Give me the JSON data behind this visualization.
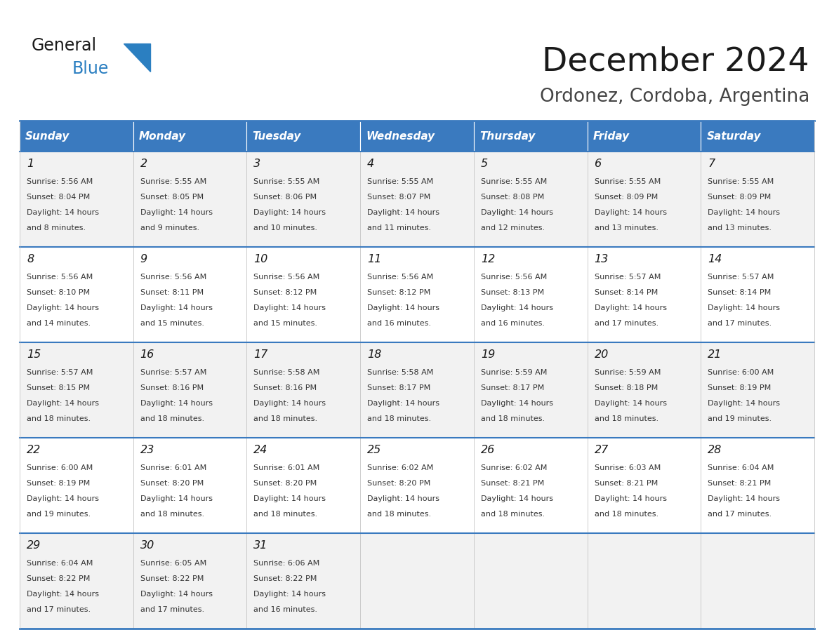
{
  "title": "December 2024",
  "subtitle": "Ordonez, Cordoba, Argentina",
  "header_bg_color": "#3a7abf",
  "header_text_color": "#ffffff",
  "row_bg_colors": [
    "#f2f2f2",
    "#ffffff"
  ],
  "text_color": "#333333",
  "divider_color": "#3a7abf",
  "days_of_week": [
    "Sunday",
    "Monday",
    "Tuesday",
    "Wednesday",
    "Thursday",
    "Friday",
    "Saturday"
  ],
  "weeks": [
    [
      {
        "day": 1,
        "sunrise": "5:56 AM",
        "sunset": "8:04 PM",
        "daylight_line1": "Daylight: 14 hours",
        "daylight_line2": "and 8 minutes."
      },
      {
        "day": 2,
        "sunrise": "5:55 AM",
        "sunset": "8:05 PM",
        "daylight_line1": "Daylight: 14 hours",
        "daylight_line2": "and 9 minutes."
      },
      {
        "day": 3,
        "sunrise": "5:55 AM",
        "sunset": "8:06 PM",
        "daylight_line1": "Daylight: 14 hours",
        "daylight_line2": "and 10 minutes."
      },
      {
        "day": 4,
        "sunrise": "5:55 AM",
        "sunset": "8:07 PM",
        "daylight_line1": "Daylight: 14 hours",
        "daylight_line2": "and 11 minutes."
      },
      {
        "day": 5,
        "sunrise": "5:55 AM",
        "sunset": "8:08 PM",
        "daylight_line1": "Daylight: 14 hours",
        "daylight_line2": "and 12 minutes."
      },
      {
        "day": 6,
        "sunrise": "5:55 AM",
        "sunset": "8:09 PM",
        "daylight_line1": "Daylight: 14 hours",
        "daylight_line2": "and 13 minutes."
      },
      {
        "day": 7,
        "sunrise": "5:55 AM",
        "sunset": "8:09 PM",
        "daylight_line1": "Daylight: 14 hours",
        "daylight_line2": "and 13 minutes."
      }
    ],
    [
      {
        "day": 8,
        "sunrise": "5:56 AM",
        "sunset": "8:10 PM",
        "daylight_line1": "Daylight: 14 hours",
        "daylight_line2": "and 14 minutes."
      },
      {
        "day": 9,
        "sunrise": "5:56 AM",
        "sunset": "8:11 PM",
        "daylight_line1": "Daylight: 14 hours",
        "daylight_line2": "and 15 minutes."
      },
      {
        "day": 10,
        "sunrise": "5:56 AM",
        "sunset": "8:12 PM",
        "daylight_line1": "Daylight: 14 hours",
        "daylight_line2": "and 15 minutes."
      },
      {
        "day": 11,
        "sunrise": "5:56 AM",
        "sunset": "8:12 PM",
        "daylight_line1": "Daylight: 14 hours",
        "daylight_line2": "and 16 minutes."
      },
      {
        "day": 12,
        "sunrise": "5:56 AM",
        "sunset": "8:13 PM",
        "daylight_line1": "Daylight: 14 hours",
        "daylight_line2": "and 16 minutes."
      },
      {
        "day": 13,
        "sunrise": "5:57 AM",
        "sunset": "8:14 PM",
        "daylight_line1": "Daylight: 14 hours",
        "daylight_line2": "and 17 minutes."
      },
      {
        "day": 14,
        "sunrise": "5:57 AM",
        "sunset": "8:14 PM",
        "daylight_line1": "Daylight: 14 hours",
        "daylight_line2": "and 17 minutes."
      }
    ],
    [
      {
        "day": 15,
        "sunrise": "5:57 AM",
        "sunset": "8:15 PM",
        "daylight_line1": "Daylight: 14 hours",
        "daylight_line2": "and 18 minutes."
      },
      {
        "day": 16,
        "sunrise": "5:57 AM",
        "sunset": "8:16 PM",
        "daylight_line1": "Daylight: 14 hours",
        "daylight_line2": "and 18 minutes."
      },
      {
        "day": 17,
        "sunrise": "5:58 AM",
        "sunset": "8:16 PM",
        "daylight_line1": "Daylight: 14 hours",
        "daylight_line2": "and 18 minutes."
      },
      {
        "day": 18,
        "sunrise": "5:58 AM",
        "sunset": "8:17 PM",
        "daylight_line1": "Daylight: 14 hours",
        "daylight_line2": "and 18 minutes."
      },
      {
        "day": 19,
        "sunrise": "5:59 AM",
        "sunset": "8:17 PM",
        "daylight_line1": "Daylight: 14 hours",
        "daylight_line2": "and 18 minutes."
      },
      {
        "day": 20,
        "sunrise": "5:59 AM",
        "sunset": "8:18 PM",
        "daylight_line1": "Daylight: 14 hours",
        "daylight_line2": "and 18 minutes."
      },
      {
        "day": 21,
        "sunrise": "6:00 AM",
        "sunset": "8:19 PM",
        "daylight_line1": "Daylight: 14 hours",
        "daylight_line2": "and 19 minutes."
      }
    ],
    [
      {
        "day": 22,
        "sunrise": "6:00 AM",
        "sunset": "8:19 PM",
        "daylight_line1": "Daylight: 14 hours",
        "daylight_line2": "and 19 minutes."
      },
      {
        "day": 23,
        "sunrise": "6:01 AM",
        "sunset": "8:20 PM",
        "daylight_line1": "Daylight: 14 hours",
        "daylight_line2": "and 18 minutes."
      },
      {
        "day": 24,
        "sunrise": "6:01 AM",
        "sunset": "8:20 PM",
        "daylight_line1": "Daylight: 14 hours",
        "daylight_line2": "and 18 minutes."
      },
      {
        "day": 25,
        "sunrise": "6:02 AM",
        "sunset": "8:20 PM",
        "daylight_line1": "Daylight: 14 hours",
        "daylight_line2": "and 18 minutes."
      },
      {
        "day": 26,
        "sunrise": "6:02 AM",
        "sunset": "8:21 PM",
        "daylight_line1": "Daylight: 14 hours",
        "daylight_line2": "and 18 minutes."
      },
      {
        "day": 27,
        "sunrise": "6:03 AM",
        "sunset": "8:21 PM",
        "daylight_line1": "Daylight: 14 hours",
        "daylight_line2": "and 18 minutes."
      },
      {
        "day": 28,
        "sunrise": "6:04 AM",
        "sunset": "8:21 PM",
        "daylight_line1": "Daylight: 14 hours",
        "daylight_line2": "and 17 minutes."
      }
    ],
    [
      {
        "day": 29,
        "sunrise": "6:04 AM",
        "sunset": "8:22 PM",
        "daylight_line1": "Daylight: 14 hours",
        "daylight_line2": "and 17 minutes."
      },
      {
        "day": 30,
        "sunrise": "6:05 AM",
        "sunset": "8:22 PM",
        "daylight_line1": "Daylight: 14 hours",
        "daylight_line2": "and 17 minutes."
      },
      {
        "day": 31,
        "sunrise": "6:06 AM",
        "sunset": "8:22 PM",
        "daylight_line1": "Daylight: 14 hours",
        "daylight_line2": "and 16 minutes."
      },
      null,
      null,
      null,
      null
    ]
  ],
  "logo_color_general": "#1a1a1a",
  "logo_color_blue": "#2b7fc1",
  "logo_triangle_color": "#2b7fc1"
}
